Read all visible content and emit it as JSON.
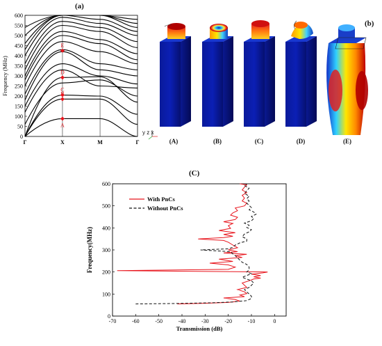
{
  "figure": {
    "panel_a_label": "(a)",
    "panel_b_label": "(b)",
    "panel_c_label": "(C)"
  },
  "band_structure": {
    "ylabel": "Frequency (MHz)",
    "yticks": [
      "0",
      "50",
      "100",
      "150",
      "200",
      "250",
      "300",
      "350",
      "400",
      "450",
      "500",
      "550",
      "600"
    ],
    "xticks": [
      "Γ",
      "X",
      "M",
      "Γ"
    ],
    "markers": [
      {
        "label": "A",
        "freq": 88
      },
      {
        "label": "B",
        "freq": 185
      },
      {
        "label": "C",
        "freq": 205
      },
      {
        "label": "D",
        "freq": 292
      },
      {
        "label": "E",
        "freq": 425
      }
    ],
    "marker_color": "#e8141c"
  },
  "modes": {
    "labels": [
      "(A)",
      "(B)",
      "(C)",
      "(D)",
      "(E)"
    ],
    "axes_label": "y z x"
  },
  "chart_data": {
    "type": "line",
    "title": "",
    "xlabel": "Transmission (dB)",
    "ylabel": "Frequency(MHz)",
    "xlim": [
      -70,
      5
    ],
    "ylim": [
      0,
      600
    ],
    "xticks": [
      -70,
      -60,
      -50,
      -40,
      -30,
      -20,
      -10,
      0
    ],
    "yticks": [
      0,
      100,
      200,
      300,
      400,
      500,
      600
    ],
    "legend": "top-left",
    "series": [
      {
        "name": "With PnCs",
        "color": "#e8141c",
        "dash": "solid",
        "points": [
          [
            -42,
            55
          ],
          [
            -30,
            58
          ],
          [
            -20,
            62
          ],
          [
            -15,
            68
          ],
          [
            -17,
            75
          ],
          [
            -22,
            82
          ],
          [
            -13,
            88
          ],
          [
            -15,
            95
          ],
          [
            -12,
            102
          ],
          [
            -13,
            110
          ],
          [
            -16,
            120
          ],
          [
            -12,
            130
          ],
          [
            -13,
            140
          ],
          [
            -14,
            150
          ],
          [
            -11,
            160
          ],
          [
            -9,
            168
          ],
          [
            -6,
            172
          ],
          [
            -9,
            178
          ],
          [
            -6,
            184
          ],
          [
            -10,
            190
          ],
          [
            -5,
            196
          ],
          [
            -3,
            200
          ],
          [
            -68,
            206
          ],
          [
            -20,
            212
          ],
          [
            -17,
            222
          ],
          [
            -20,
            232
          ],
          [
            -28,
            240
          ],
          [
            -18,
            248
          ],
          [
            -24,
            258
          ],
          [
            -14,
            266
          ],
          [
            -17,
            274
          ],
          [
            -12,
            280
          ],
          [
            -22,
            286
          ],
          [
            -16,
            292
          ],
          [
            -20,
            300
          ],
          [
            -16,
            310
          ],
          [
            -18,
            322
          ],
          [
            -20,
            335
          ],
          [
            -22,
            343
          ],
          [
            -33,
            350
          ],
          [
            -22,
            356
          ],
          [
            -18,
            362
          ],
          [
            -22,
            370
          ],
          [
            -17,
            378
          ],
          [
            -24,
            388
          ],
          [
            -19,
            398
          ],
          [
            -20,
            410
          ],
          [
            -18,
            420
          ],
          [
            -22,
            428
          ],
          [
            -17,
            438
          ],
          [
            -16,
            448
          ],
          [
            -19,
            458
          ],
          [
            -18,
            468
          ],
          [
            -16,
            478
          ],
          [
            -17,
            490
          ],
          [
            -13,
            500
          ],
          [
            -12,
            512
          ],
          [
            -14,
            522
          ],
          [
            -13,
            535
          ],
          [
            -14,
            548
          ],
          [
            -12,
            560
          ],
          [
            -14,
            572
          ],
          [
            -13,
            585
          ],
          [
            -12,
            595
          ],
          [
            -15,
            600
          ]
        ]
      },
      {
        "name": "Without PnCs",
        "color": "#111111",
        "dash": "dashed",
        "points": [
          [
            -60,
            55
          ],
          [
            -42,
            57
          ],
          [
            -28,
            60
          ],
          [
            -18,
            64
          ],
          [
            -12,
            70
          ],
          [
            -10,
            80
          ],
          [
            -10,
            90
          ],
          [
            -11,
            100
          ],
          [
            -12,
            110
          ],
          [
            -13,
            120
          ],
          [
            -11,
            130
          ],
          [
            -10,
            140
          ],
          [
            -9,
            150
          ],
          [
            -10,
            160
          ],
          [
            -12,
            168
          ],
          [
            -14,
            176
          ],
          [
            -12,
            184
          ],
          [
            -10,
            192
          ],
          [
            -12,
            200
          ],
          [
            -11,
            210
          ],
          [
            -11,
            222
          ],
          [
            -12,
            234
          ],
          [
            -14,
            244
          ],
          [
            -15,
            254
          ],
          [
            -16,
            264
          ],
          [
            -17,
            274
          ],
          [
            -18,
            282
          ],
          [
            -19,
            292
          ],
          [
            -32,
            300
          ],
          [
            -20,
            305
          ],
          [
            -18,
            312
          ],
          [
            -17,
            322
          ],
          [
            -15,
            332
          ],
          [
            -12,
            340
          ],
          [
            -12,
            350
          ],
          [
            -14,
            360
          ],
          [
            -13,
            372
          ],
          [
            -11,
            382
          ],
          [
            -10,
            392
          ],
          [
            -12,
            402
          ],
          [
            -11,
            412
          ],
          [
            -13,
            422
          ],
          [
            -10,
            432
          ],
          [
            -9,
            442
          ],
          [
            -10,
            452
          ],
          [
            -8,
            462
          ],
          [
            -9,
            472
          ],
          [
            -11,
            482
          ],
          [
            -10,
            492
          ],
          [
            -11,
            502
          ],
          [
            -12,
            512
          ],
          [
            -11,
            522
          ],
          [
            -12,
            532
          ],
          [
            -11,
            544
          ],
          [
            -13,
            556
          ],
          [
            -12,
            568
          ],
          [
            -11,
            580
          ],
          [
            -13,
            592
          ],
          [
            -12,
            600
          ]
        ]
      }
    ]
  }
}
